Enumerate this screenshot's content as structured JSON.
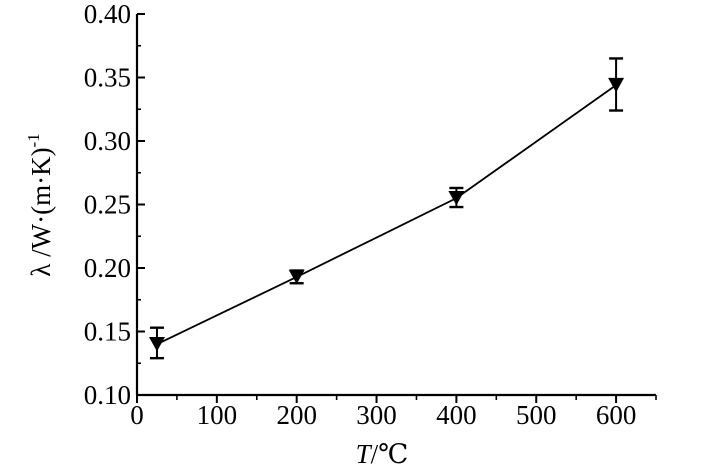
{
  "chart_data": {
    "type": "line",
    "x": [
      25,
      200,
      400,
      600
    ],
    "y": [
      0.14,
      0.193,
      0.255,
      0.344
    ],
    "y_error": [
      [
        0.011,
        0.013
      ],
      [
        0.005,
        0.005
      ],
      [
        0.007,
        0.008
      ],
      [
        0.02,
        0.021
      ]
    ],
    "marker": "filled-down-triangle",
    "color": "#000000",
    "xlim": [
      0,
      650
    ],
    "ylim": [
      0.1,
      0.4
    ],
    "xticks": [
      "0",
      "100",
      "200",
      "300",
      "400",
      "500",
      "600"
    ],
    "yticks": [
      "0.10",
      "0.15",
      "0.20",
      "0.25",
      "0.30",
      "0.35",
      "0.40"
    ],
    "xlabel": {
      "symbol": "T",
      "unit": "/℃"
    },
    "ylabel": {
      "main": "λ /W·(m·K)",
      "superscript": "-1"
    },
    "grid": false,
    "legend": null
  }
}
